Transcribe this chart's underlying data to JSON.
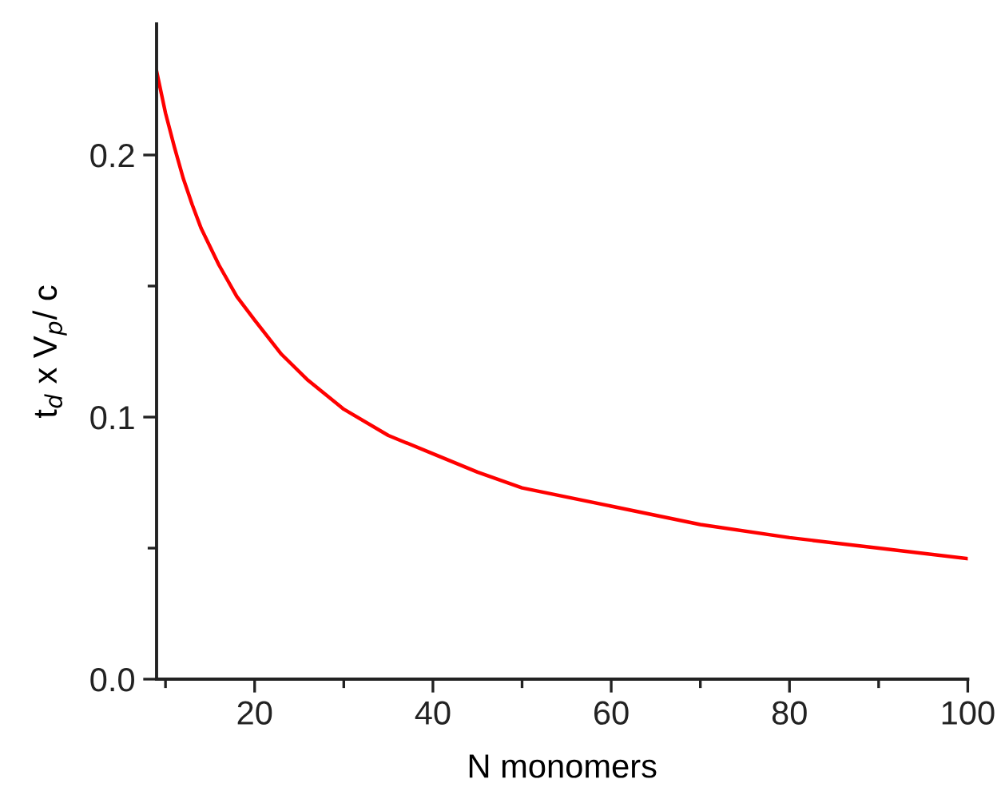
{
  "chart_data": {
    "type": "line",
    "xlabel": "N monomers",
    "ylabel": "t$_{d}$ x V$_{p}$/ c",
    "x": [
      9,
      10,
      11,
      12,
      13,
      14,
      16,
      18,
      20,
      23,
      26,
      30,
      35,
      40,
      45,
      50,
      60,
      70,
      80,
      90,
      100
    ],
    "series": [
      {
        "color": "#ff0000",
        "values": [
          0.232,
          0.216,
          0.203,
          0.191,
          0.181,
          0.172,
          0.158,
          0.146,
          0.137,
          0.124,
          0.114,
          0.103,
          0.093,
          0.086,
          0.079,
          0.073,
          0.066,
          0.059,
          0.054,
          0.05,
          0.046
        ]
      }
    ],
    "xlim": [
      9,
      100
    ],
    "ylim": [
      0,
      0.25
    ],
    "xticks": [
      {
        "value": 10,
        "label": null
      },
      20,
      {
        "value": 30,
        "label": null
      },
      40,
      {
        "value": 50,
        "label": null
      },
      60,
      {
        "value": 70,
        "label": null
      },
      80,
      {
        "value": 90,
        "label": null
      },
      100
    ],
    "yticks": [
      {
        "value": 0,
        "label": "0.0"
      },
      {
        "value": 0.05,
        "label": null
      },
      0.1,
      {
        "value": 0.15,
        "label": null
      },
      0.2
    ],
    "grid": false,
    "marker": "none",
    "line_style": "solid"
  }
}
